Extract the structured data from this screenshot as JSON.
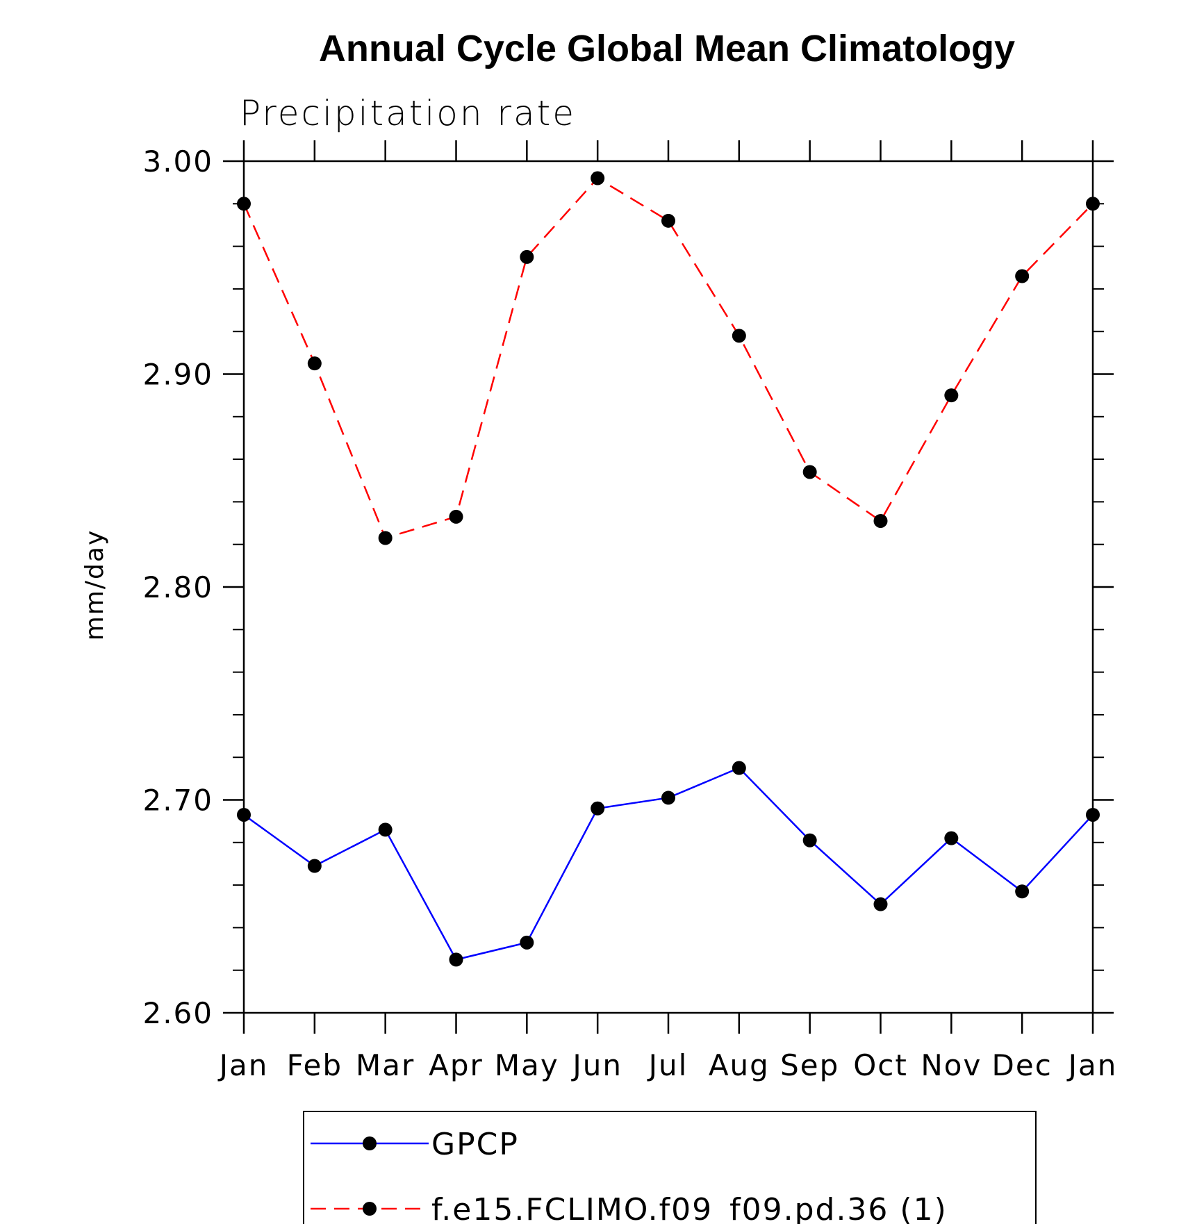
{
  "chart_data": {
    "type": "line",
    "title": "Annual Cycle Global Mean Climatology",
    "subtitle": "Precipitation rate",
    "ylabel": "mm/day",
    "xlabel": "",
    "categories": [
      "Jan",
      "Feb",
      "Mar",
      "Apr",
      "May",
      "Jun",
      "Jul",
      "Aug",
      "Sep",
      "Oct",
      "Nov",
      "Dec",
      "Jan"
    ],
    "ylim": [
      2.6,
      3.0
    ],
    "yticks": [
      "3.00",
      "2.90",
      "2.80",
      "2.70",
      "2.60"
    ],
    "grid": false,
    "legend_position": "bottom",
    "series": [
      {
        "name": "GPCP",
        "color": "#0000ff",
        "line_style": "solid",
        "marker": "filled-circle",
        "values": [
          2.693,
          2.669,
          2.686,
          2.625,
          2.633,
          2.696,
          2.701,
          2.715,
          2.681,
          2.651,
          2.682,
          2.657,
          2.693
        ]
      },
      {
        "name": "f.e15.FCLIMO.f09_f09.pd.36 (1)",
        "color": "#ff0000",
        "line_style": "dashed",
        "marker": "filled-circle",
        "values": [
          2.98,
          2.905,
          2.823,
          2.833,
          2.955,
          2.992,
          2.972,
          2.918,
          2.854,
          2.831,
          2.89,
          2.946,
          2.98
        ]
      }
    ]
  }
}
